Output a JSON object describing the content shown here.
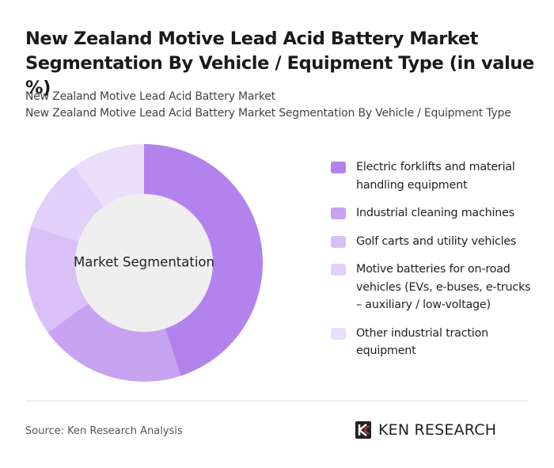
{
  "chart_data": {
    "type": "donut",
    "title": "New Zealand Motive Lead Acid Battery Market Segmentation By Vehicle / Equipment Type (in value %)",
    "subtitle": [
      "New Zealand Motive Lead Acid Battery Market",
      "New Zealand Motive Lead Acid Battery Market Segmentation By Vehicle / Equipment Type"
    ],
    "center_label": "Market Segmentation",
    "categories": [
      "Electric forklifts and material handling equipment",
      "Industrial cleaning machines",
      "Golf carts and utility vehicles",
      "Motive batteries for on-road vehicles (EVs, e-buses, e-trucks – auxiliary / low-voltage)",
      "Other industrial traction equipment"
    ],
    "values": [
      45,
      20,
      15,
      10,
      10
    ],
    "colors": [
      "#b283ec",
      "#c7a2f1",
      "#d9c0f6",
      "#e2d0f8",
      "#ebdefa"
    ],
    "source": "Source: Ken Research Analysis",
    "brand": "KEN RESEARCH"
  }
}
